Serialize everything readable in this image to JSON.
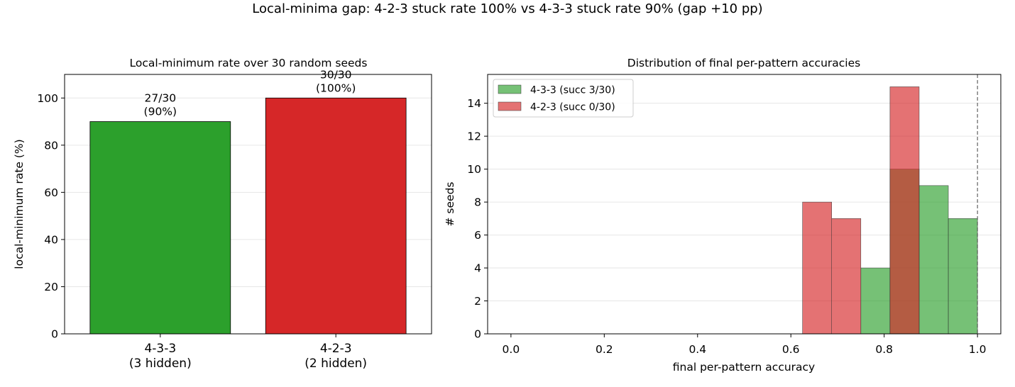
{
  "suptitle": "Local-minima gap: 4-2-3 stuck rate 100% vs 4-3-3 stuck rate 90% (gap +10 pp)",
  "chart_data": [
    {
      "type": "bar",
      "title": "Local-minimum rate over 30 random seeds",
      "xlabel": "",
      "ylabel": "local-minimum rate (%)",
      "ylim": [
        0,
        110
      ],
      "yticks": [
        0,
        20,
        40,
        60,
        80,
        100
      ],
      "grid": "y",
      "categories": [
        "4-3-3\n(3 hidden)",
        "4-2-3\n(2 hidden)"
      ],
      "values": [
        90,
        100
      ],
      "bar_labels": [
        "27/30\n(90%)",
        "30/30\n(100%)"
      ],
      "colors": [
        "#2ca02c",
        "#d62728"
      ]
    },
    {
      "type": "bar",
      "subtype": "histogram",
      "title": "Distribution of final per-pattern accuracies",
      "xlabel": "final per-pattern accuracy",
      "ylabel": "# seeds",
      "xlim": [
        -0.05,
        1.05
      ],
      "ylim": [
        0,
        15.75
      ],
      "xticks": [
        0.0,
        0.2,
        0.4,
        0.6,
        0.8,
        1.0
      ],
      "yticks": [
        0,
        2,
        4,
        6,
        8,
        10,
        12,
        14
      ],
      "grid": "y",
      "bin_edges": [
        0.625,
        0.75,
        0.875,
        1.0
      ],
      "legend_position": "upper-left",
      "reference_line": {
        "x": 1.0,
        "style": "dashed"
      },
      "series": [
        {
          "name": "4-3-3 (succ 3/30)",
          "color": "#2ca02c",
          "bins": [
            {
              "x0": 0.75,
              "x1": 0.8125,
              "count": 4
            },
            {
              "x0": 0.8125,
              "x1": 0.875,
              "count": 10
            },
            {
              "x0": 0.875,
              "x1": 0.9375,
              "count": 9
            },
            {
              "x0": 0.9375,
              "x1": 1.0,
              "count": 7
            }
          ]
        },
        {
          "name": "4-2-3 (succ 0/30)",
          "color": "#d62728",
          "bins": [
            {
              "x0": 0.625,
              "x1": 0.6875,
              "count": 8
            },
            {
              "x0": 0.6875,
              "x1": 0.75,
              "count": 7
            },
            {
              "x0": 0.8125,
              "x1": 0.875,
              "count": 15
            }
          ]
        }
      ]
    }
  ]
}
